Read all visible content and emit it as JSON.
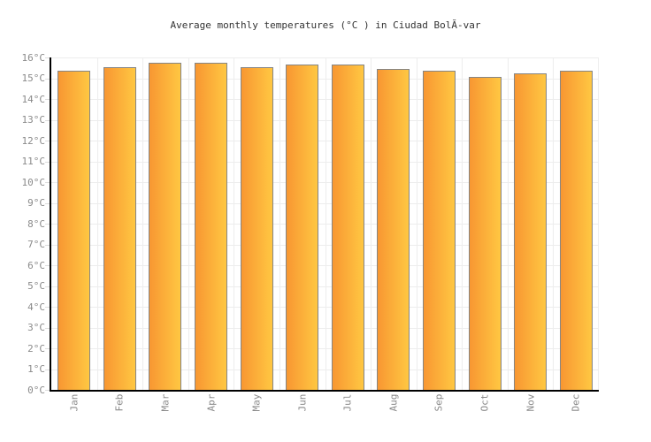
{
  "title": "Average monthly temperatures (°C ) in Ciudad BolĂ-var",
  "chart_data": {
    "type": "bar",
    "title": "Average monthly temperatures (°C ) in Ciudad BolĂ-var",
    "categories": [
      "Jan",
      "Feb",
      "Mar",
      "Apr",
      "May",
      "Jun",
      "Jul",
      "Aug",
      "Sep",
      "Oct",
      "Nov",
      "Dec"
    ],
    "values": [
      15.3,
      15.5,
      15.7,
      15.7,
      15.5,
      15.6,
      15.6,
      15.4,
      15.3,
      15.0,
      15.2,
      15.3
    ],
    "unit": "°C",
    "xlabel": "",
    "ylabel": "",
    "ylim": [
      0,
      16
    ],
    "y_tick_step": 1,
    "y_tick_labels": [
      "0°C",
      "1°C",
      "2°C",
      "3°C",
      "4°C",
      "5°C",
      "6°C",
      "7°C",
      "8°C",
      "9°C",
      "10°C",
      "11°C",
      "12°C",
      "13°C",
      "14°C",
      "15°C",
      "16°C"
    ],
    "grid": true,
    "legend": false,
    "colors": {
      "bar_gradient_left": "#f89732",
      "bar_gradient_right": "#ffc742",
      "bar_border": "#858585",
      "gridline": "#ededed",
      "axis": "#000000",
      "tick_label": "#8a8a8a",
      "title": "#333333",
      "background": "#ffffff"
    }
  }
}
